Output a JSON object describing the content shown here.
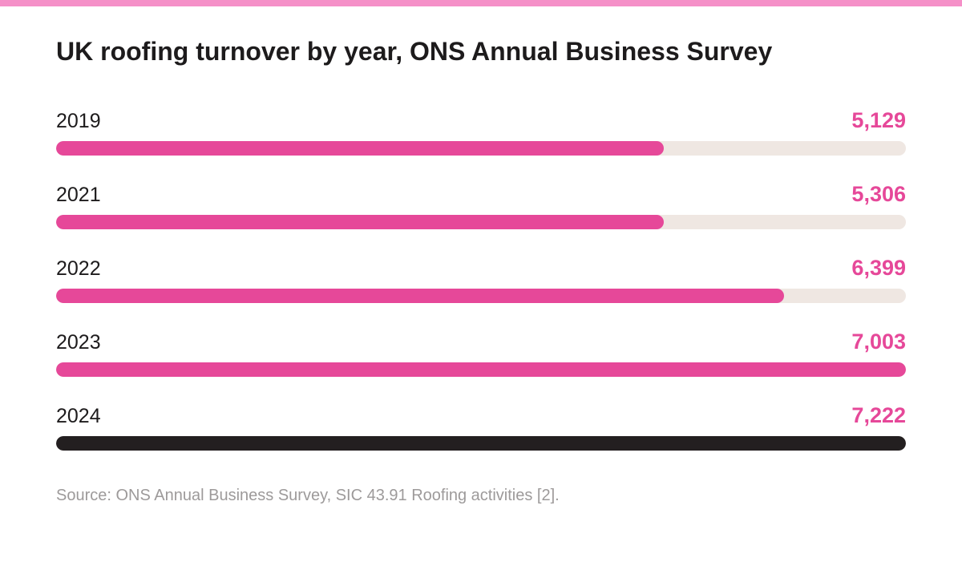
{
  "title": "UK roofing turnover by year, ONS Annual Business Survey",
  "source": "Source: ONS Annual Business Survey, SIC 43.91 Roofing activities [2].",
  "colors": {
    "accent": "#e64899",
    "highlight": "#231f20",
    "track": "#efe7e2",
    "stripe": "#f590c8"
  },
  "chart_data": {
    "type": "bar",
    "orientation": "horizontal",
    "title": "UK roofing turnover by year, ONS Annual Business Survey",
    "categories": [
      "2019",
      "2021",
      "2022",
      "2023",
      "2024"
    ],
    "values": [
      5129,
      5306,
      6399,
      7003,
      7222
    ],
    "value_labels": [
      "5,129",
      "5,306",
      "6,399",
      "7,003",
      "7,222"
    ],
    "fill_fractions": [
      0.715,
      0.715,
      0.857,
      1.0,
      1.0
    ],
    "highlighted_category": "2024",
    "grid": false
  }
}
